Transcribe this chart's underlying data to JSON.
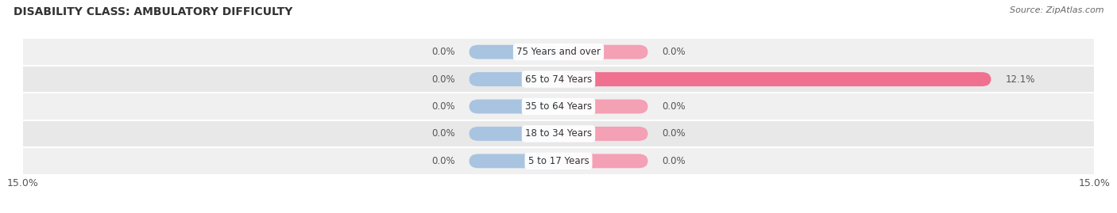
{
  "title": "DISABILITY CLASS: AMBULATORY DIFFICULTY",
  "source": "Source: ZipAtlas.com",
  "categories": [
    "5 to 17 Years",
    "18 to 34 Years",
    "35 to 64 Years",
    "65 to 74 Years",
    "75 Years and over"
  ],
  "male_values": [
    0.0,
    0.0,
    0.0,
    0.0,
    0.0
  ],
  "female_values": [
    0.0,
    0.0,
    0.0,
    12.1,
    0.0
  ],
  "x_max": 15.0,
  "min_bar_width": 2.5,
  "male_color": "#a8c4e0",
  "female_color": "#f4a0b5",
  "female_color_big": "#f07090",
  "male_color_legend": "#7bafd4",
  "female_color_legend": "#f07090",
  "row_color_odd": "#f0f0f0",
  "row_color_even": "#e8e8e8",
  "label_color": "#555555",
  "title_color": "#333333",
  "title_fontsize": 10,
  "source_fontsize": 8,
  "label_fontsize": 8.5,
  "axis_label_fontsize": 9,
  "category_fontsize": 8.5,
  "fig_width": 14.06,
  "fig_height": 2.69,
  "dpi": 100
}
